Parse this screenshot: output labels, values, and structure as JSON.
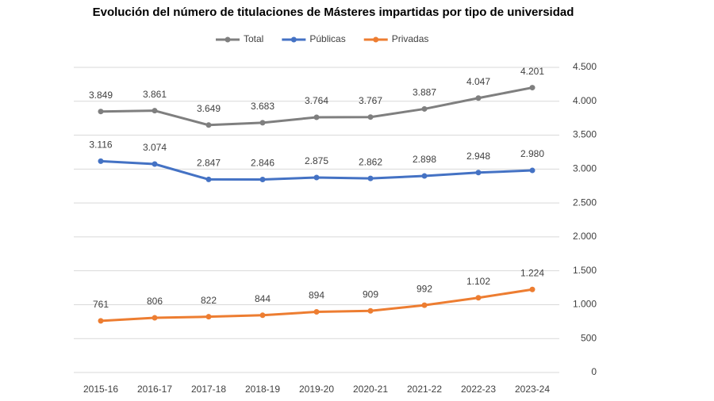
{
  "chart_data": {
    "type": "line",
    "title": "Evolución del número de titulaciones de Másteres impartidas por tipo de universidad",
    "categories": [
      "2015-16",
      "2016-17",
      "2017-18",
      "2018-19",
      "2019-20",
      "2020-21",
      "2021-22",
      "2022-23",
      "2023-24"
    ],
    "series": [
      {
        "name": "Total",
        "color": "#7f7f7f",
        "values": [
          3849,
          3861,
          3649,
          3683,
          3764,
          3767,
          3887,
          4047,
          4201
        ],
        "value_labels": [
          "3.849",
          "3.861",
          "3.649",
          "3.683",
          "3.764",
          "3.767",
          "3.887",
          "4.047",
          "4.201"
        ]
      },
      {
        "name": "Públicas",
        "color": "#4472c4",
        "values": [
          3116,
          3074,
          2847,
          2846,
          2875,
          2862,
          2898,
          2948,
          2980
        ],
        "value_labels": [
          "3.116",
          "3.074",
          "2.847",
          "2.846",
          "2.875",
          "2.862",
          "2.898",
          "2.948",
          "2.980"
        ]
      },
      {
        "name": "Privadas",
        "color": "#ed7d31",
        "values": [
          761,
          806,
          822,
          844,
          894,
          909,
          992,
          1102,
          1224
        ],
        "value_labels": [
          "761",
          "806",
          "822",
          "844",
          "894",
          "909",
          "992",
          "1.102",
          "1.224"
        ]
      }
    ],
    "ylim": [
      0,
      4500
    ],
    "yticks": [
      0,
      500,
      {
        "value": 1000,
        "label": "1.000"
      },
      {
        "value": 1500,
        "label": "1.500"
      },
      {
        "value": 2000,
        "label": "2.000"
      },
      {
        "value": 2500,
        "label": "2.500"
      },
      {
        "value": 3000,
        "label": "3.000"
      },
      {
        "value": 3500,
        "label": "3.500"
      },
      {
        "value": 4000,
        "label": "4.000"
      },
      {
        "value": 4500,
        "label": "4.500"
      }
    ],
    "yaxis_position": "right",
    "grid": true,
    "legend": "top"
  }
}
